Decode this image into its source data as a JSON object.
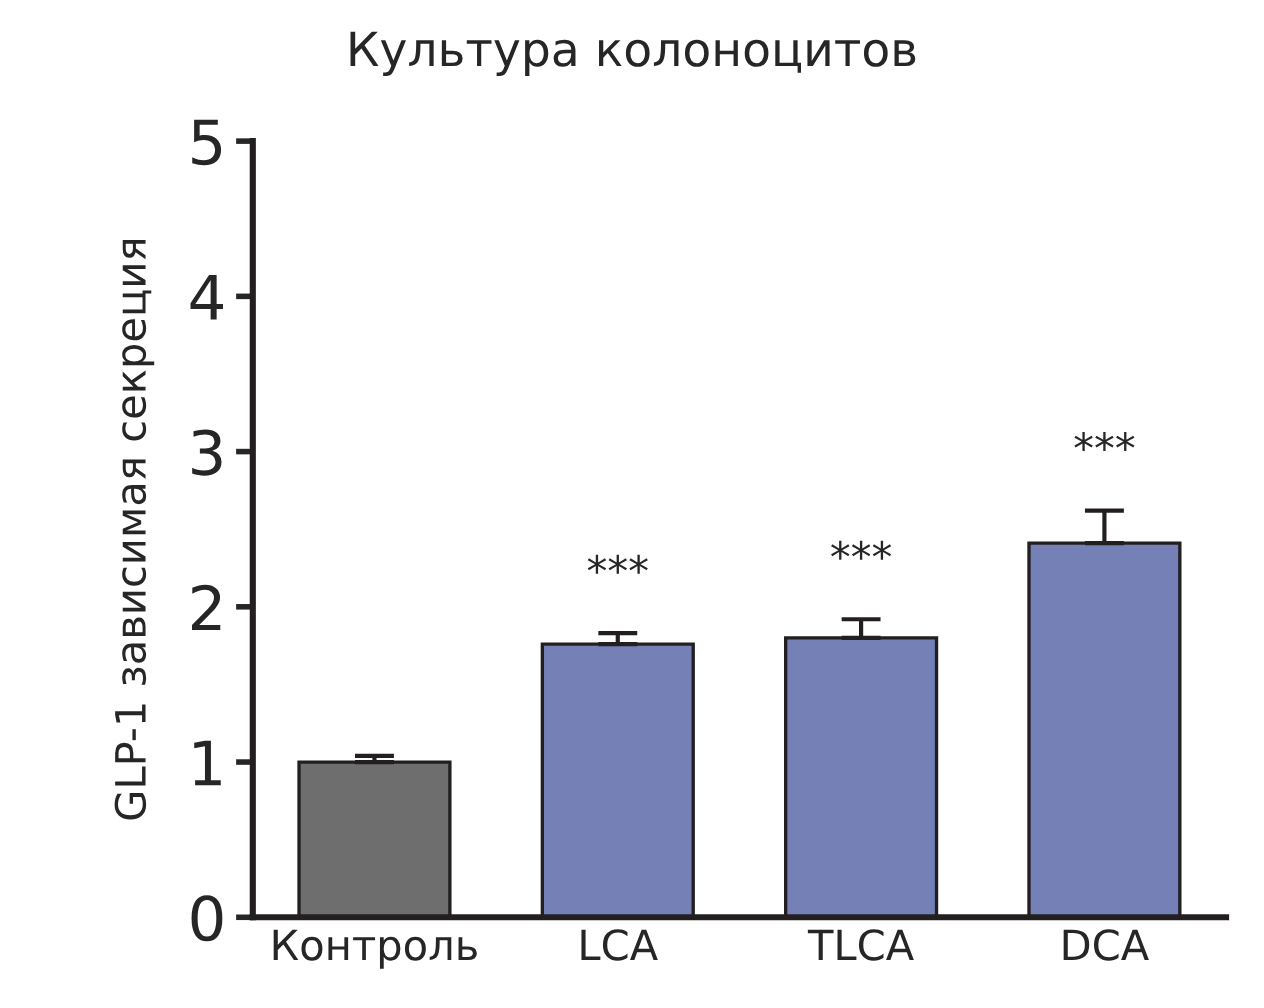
{
  "chart_data": {
    "type": "bar",
    "title": "Культура колоноцитов",
    "ylabel": "GLP-1 зависимая секреция",
    "categories": [
      "Контроль",
      "LCA",
      "TLCA",
      "DCA"
    ],
    "values": [
      1.0,
      1.76,
      1.8,
      2.41
    ],
    "colors": [
      "#6e6e6e",
      "#6a79c2",
      "#6a79c2",
      "#6a79c2"
    ],
    "errors": [
      [
        1.0,
        1.04
      ],
      [
        1.76,
        1.83
      ],
      [
        1.8,
        1.92
      ],
      [
        2.41,
        2.62
      ]
    ],
    "ylim": [
      0,
      5
    ],
    "yticks": [
      0,
      1,
      2,
      3,
      4,
      5
    ],
    "grid": false,
    "legend": false,
    "annotations": [
      {
        "text": "***",
        "x": "LCA",
        "y": 1.83
      },
      {
        "text": "***",
        "x": "TLCA",
        "y": 1.92
      },
      {
        "text": "***",
        "x": "DCA",
        "y": 2.62
      }
    ]
  }
}
